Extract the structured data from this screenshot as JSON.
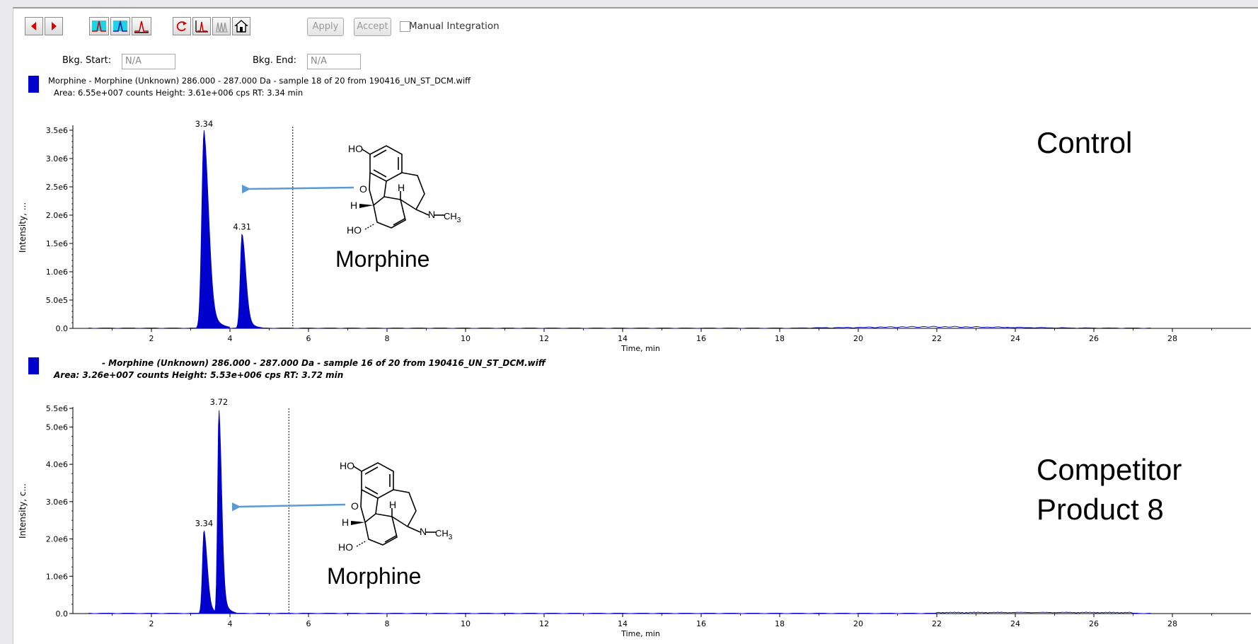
{
  "toolbar": {
    "prev_icon": "left-arrow-icon",
    "next_icon": "right-arrow-icon",
    "apply_label": "Apply",
    "accept_label": "Accept",
    "manual_integration_label": "Manual Integration",
    "bkg_start_label": "Bkg. Start:",
    "bkg_start_value": "N/A",
    "bkg_end_label": "Bkg. End:",
    "bkg_end_value": "N/A"
  },
  "colors": {
    "trace": "#0000cc",
    "arrow": "#5b9bd5"
  },
  "chart_data": [
    {
      "type": "line",
      "header_line1": "Morphine - Morphine (Unknown) 286.000 - 287.000 Da - sample 18 of 20 from 190416_UN_ST_DCM.wiff",
      "header_line2": "Area: 6.55e+007 counts  Height: 3.61e+006 cps  RT: 3.34 min",
      "ylabel": "Intensity, ...",
      "xlabel": "Time, min",
      "xlim": [
        0,
        30
      ],
      "ylim": [
        0,
        3550000.0
      ],
      "yticks": [
        "0.0",
        "5.0e5",
        "1.0e6",
        "1.5e6",
        "2.0e6",
        "2.5e6",
        "3.0e6",
        "3.5e6"
      ],
      "ytick_values": [
        0,
        500000,
        1000000,
        1500000,
        2000000,
        2500000,
        3000000,
        3500000
      ],
      "xticks": [
        "2",
        "4",
        "6",
        "8",
        "10",
        "12",
        "14",
        "16",
        "18",
        "20",
        "22",
        "24",
        "26",
        "28"
      ],
      "xtick_values": [
        2,
        4,
        6,
        8,
        10,
        12,
        14,
        16,
        18,
        20,
        22,
        24,
        26,
        28
      ],
      "peaks": [
        {
          "rt": 3.34,
          "label": "3.34",
          "height": 3500000
        },
        {
          "rt": 4.31,
          "label": "4.31",
          "height": 1680000
        }
      ],
      "marker_rt": 5.6,
      "annotation": "Control",
      "molecule_label": "Morphine"
    },
    {
      "type": "line",
      "header_line1": "- Morphine (Unknown) 286.000 - 287.000 Da - sample 16 of 20 from 190416_UN_ST_DCM.wiff",
      "header_line2": "Area: 3.26e+007 counts  Height: 5.53e+006 cps  RT: 3.72 min",
      "ylabel": "Intensity, c...",
      "xlabel": "Time, min",
      "xlim": [
        0,
        30
      ],
      "ylim": [
        0,
        5500000.0
      ],
      "yticks": [
        "0.0",
        "1.0e6",
        "2.0e6",
        "3.0e6",
        "4.0e6",
        "5.0e6",
        "5.5e6"
      ],
      "ytick_values": [
        0,
        1000000,
        2000000,
        3000000,
        4000000,
        5000000,
        5500000
      ],
      "xticks": [
        "2",
        "4",
        "6",
        "8",
        "10",
        "12",
        "14",
        "16",
        "18",
        "20",
        "22",
        "24",
        "26",
        "28"
      ],
      "xtick_values": [
        2,
        4,
        6,
        8,
        10,
        12,
        14,
        16,
        18,
        20,
        22,
        24,
        26,
        28
      ],
      "peaks": [
        {
          "rt": 3.34,
          "label": "3.34",
          "height": 2250000
        },
        {
          "rt": 3.72,
          "label": "3.72",
          "height": 5500000
        }
      ],
      "marker_rt": 5.5,
      "annotation_line1": "Competitor",
      "annotation_line2": "Product 8",
      "molecule_label": "Morphine"
    }
  ],
  "molecule": {
    "ho_top": "HO",
    "ho_bottom": "HO",
    "h1": "H",
    "h2": "H",
    "o": "O",
    "n": "N",
    "ch3": "CH",
    "ch3_sub": "3"
  }
}
